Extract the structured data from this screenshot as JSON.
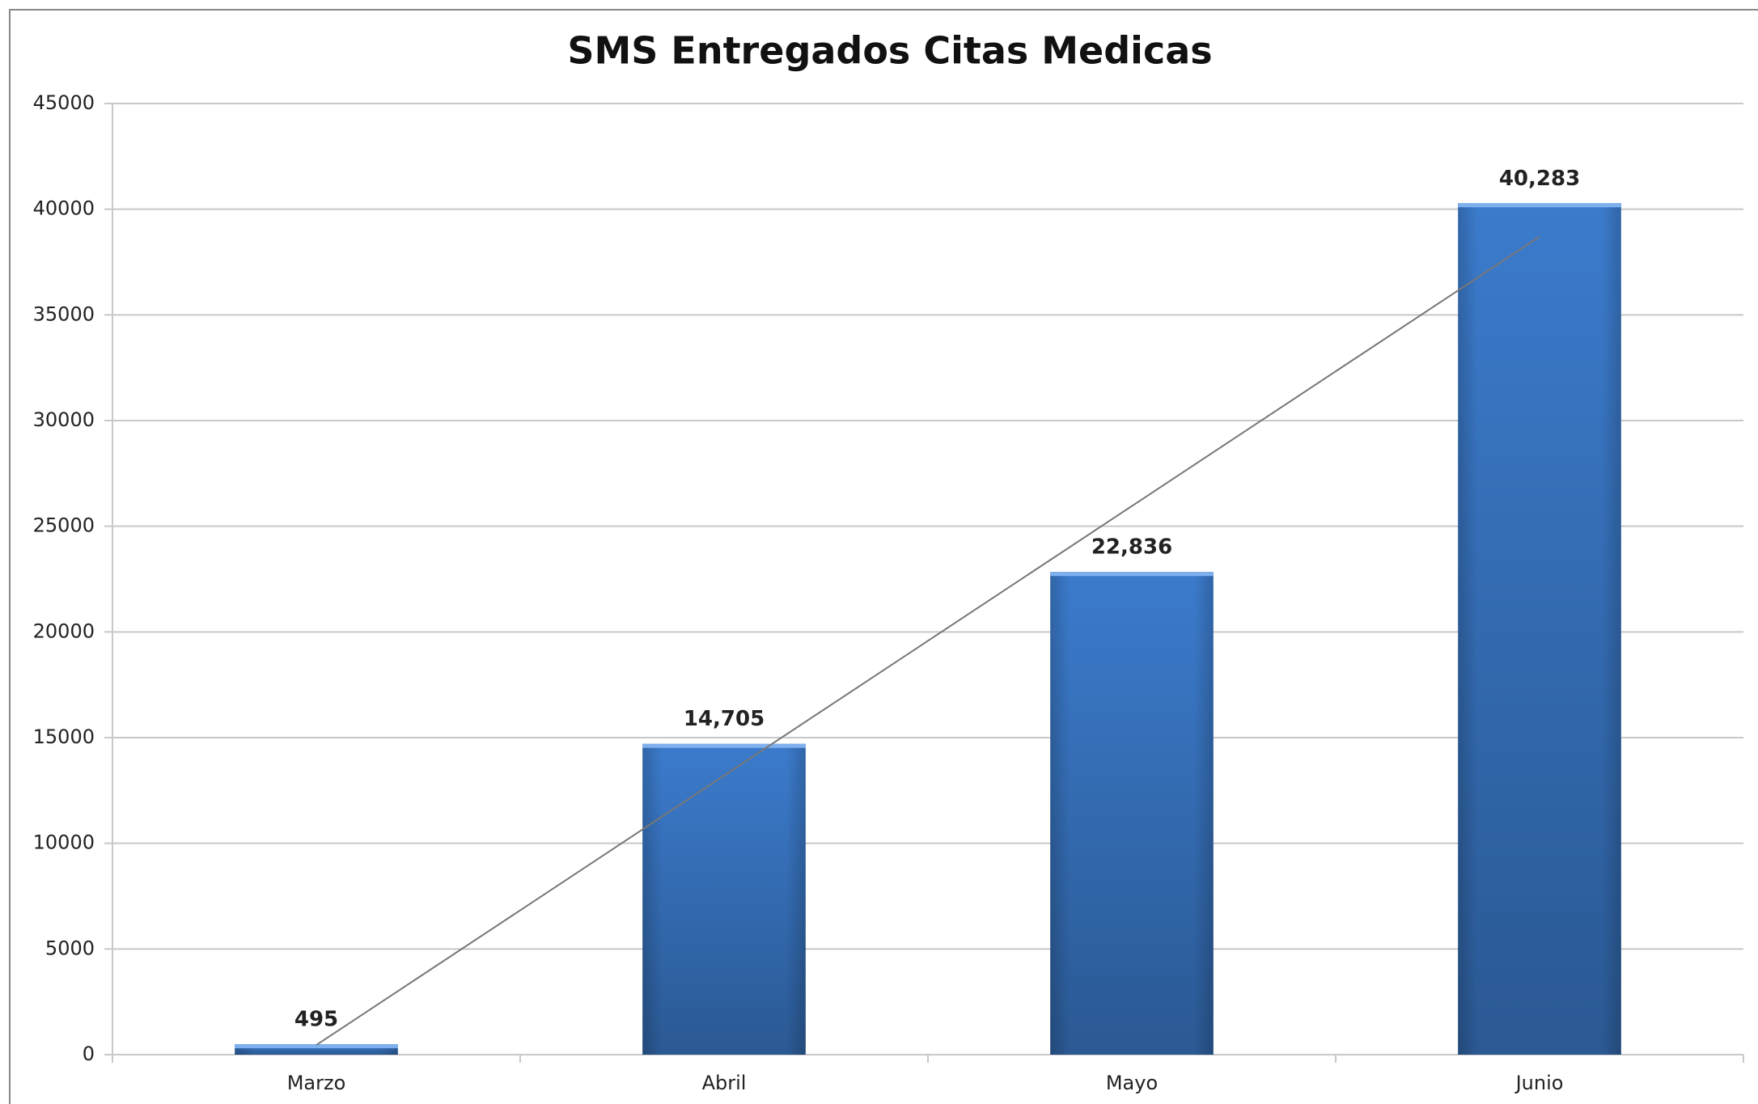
{
  "chart_data": {
    "type": "bar",
    "title": "SMS Entregados Citas Medicas",
    "categories": [
      "Marzo",
      "Abril",
      "Mayo",
      "Junio"
    ],
    "values": [
      495,
      14705,
      22836,
      40283
    ],
    "value_labels": [
      "495",
      "14,705",
      "22,836",
      "40,283"
    ],
    "color": "#3b7bcc",
    "ylim": [
      0,
      45000
    ],
    "yticks": [
      0,
      5000,
      10000,
      15000,
      20000,
      25000,
      30000,
      35000,
      40000,
      45000
    ],
    "grid": true,
    "trendline": "linear"
  }
}
